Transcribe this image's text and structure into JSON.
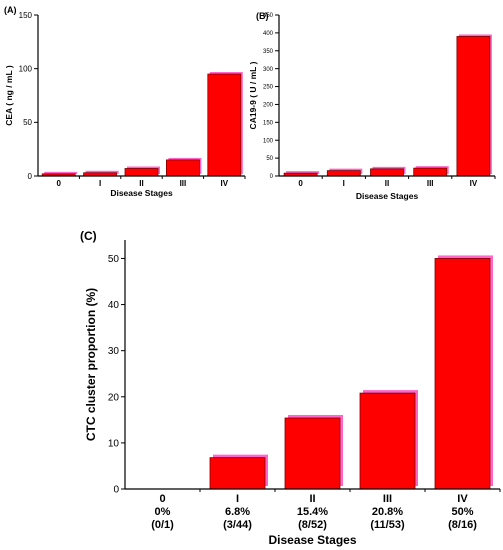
{
  "chart_data": [
    {
      "panel": "(A)",
      "type": "bar",
      "categories": [
        "0",
        "I",
        "II",
        "III",
        "IV"
      ],
      "values": [
        2,
        3,
        7,
        15,
        95
      ],
      "ylabel": "CEA ( ng / mL )",
      "xlabel": "Disease Stages",
      "ylim": [
        0,
        150
      ],
      "yticks": [
        0,
        50,
        100,
        150
      ],
      "bar_color": "#ff0000",
      "bar_edge": "#800000",
      "shadow_color": "#ff66cc"
    },
    {
      "panel": "(B)",
      "type": "bar",
      "categories": [
        "0",
        "I",
        "II",
        "III",
        "IV"
      ],
      "values": [
        8,
        15,
        20,
        22,
        390
      ],
      "ylabel": "CA19-9 ( U / mL )",
      "xlabel": "Disease Stages",
      "ylim": [
        0,
        450
      ],
      "yticks": [
        0,
        50,
        100,
        150,
        200,
        250,
        300,
        350,
        400,
        450
      ],
      "bar_color": "#ff0000",
      "bar_edge": "#800000",
      "shadow_color": "#ff66cc"
    },
    {
      "panel": "(C)",
      "type": "bar",
      "categories": [
        "0",
        "I",
        "II",
        "III",
        "IV"
      ],
      "category_sublabels": [
        [
          "0%",
          "(0/1)"
        ],
        [
          "6.8%",
          "(3/44)"
        ],
        [
          "15.4%",
          "(8/52)"
        ],
        [
          "20.8%",
          "(11/53)"
        ],
        [
          "50%",
          "(8/16)"
        ]
      ],
      "values": [
        0,
        6.8,
        15.4,
        20.8,
        50
      ],
      "ylabel": "CTC cluster proportion (%)",
      "xlabel": "Disease Stages",
      "ylim": [
        0,
        54
      ],
      "yticks": [
        0,
        10,
        20,
        30,
        40,
        50
      ],
      "bar_color": "#ff0000",
      "bar_edge": "#800000",
      "shadow_color": "#ff66cc"
    }
  ]
}
